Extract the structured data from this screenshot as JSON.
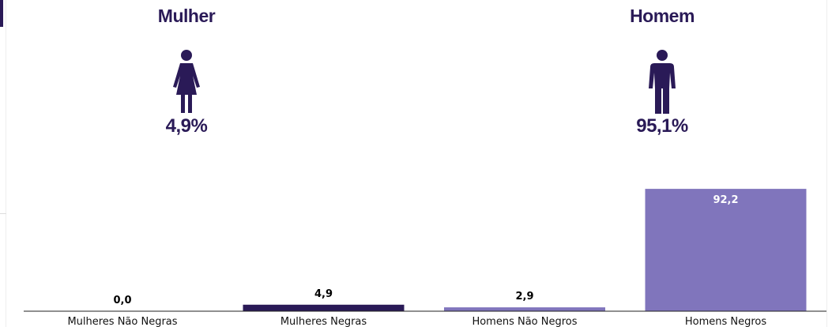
{
  "genders": [
    {
      "title": "Mulher",
      "percent": "4,9%",
      "icon": "female-person-icon"
    },
    {
      "title": "Homem",
      "percent": "95,1%",
      "icon": "male-person-icon"
    }
  ],
  "colors": {
    "accent": "#2a1a57",
    "dark_bar": "#2a1a57",
    "light_bar": "#8075bc",
    "label_dark": "#000000",
    "label_light": "#ffffff"
  },
  "chart_data": {
    "type": "bar",
    "categories": [
      "Mulheres Não Negras",
      "Mulheres Negras",
      "Homens Não Negros",
      "Homens Negros"
    ],
    "values": [
      0.0,
      4.9,
      2.9,
      92.2
    ],
    "value_labels": [
      "0,0",
      "4,9",
      "2,9",
      "92,2"
    ],
    "title": "",
    "xlabel": "",
    "ylabel": "",
    "ylim": [
      0,
      100
    ],
    "grid": false
  }
}
